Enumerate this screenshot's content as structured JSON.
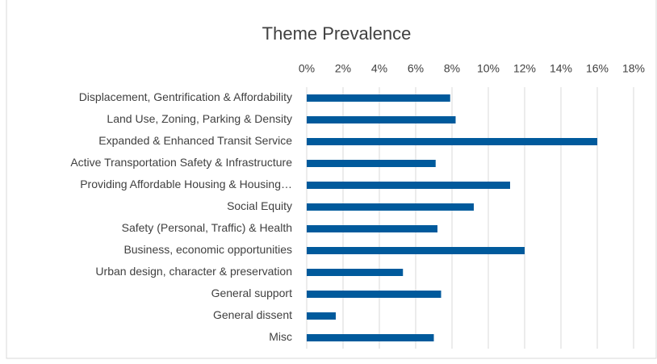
{
  "chart_data": {
    "type": "bar",
    "orientation": "horizontal",
    "title": "Theme Prevalence",
    "categories": [
      "Displacement, Gentrification & Affordability",
      "Land Use, Zoning, Parking & Density",
      "Expanded & Enhanced Transit Service",
      "Active Transportation Safety & Infrastructure",
      "Providing Affordable Housing & Housing…",
      "Social Equity",
      "Safety (Personal, Traffic) & Health",
      "Business, economic opportunities",
      "Urban design, character & preservation",
      "General support",
      "General dissent",
      "Misc"
    ],
    "values": [
      7.9,
      8.2,
      16.0,
      7.1,
      11.2,
      9.2,
      7.2,
      12.0,
      5.3,
      7.4,
      1.6,
      7.0
    ],
    "color": "#005a9c",
    "xlim": [
      0,
      18
    ],
    "xticks": [
      {
        "value": 0,
        "label": "0%"
      },
      {
        "value": 2,
        "label": "2%"
      },
      {
        "value": 4,
        "label": "4%"
      },
      {
        "value": 6,
        "label": "6%"
      },
      {
        "value": 8,
        "label": "8%"
      },
      {
        "value": 10,
        "label": "10%"
      },
      {
        "value": 12,
        "label": "12%"
      },
      {
        "value": 14,
        "label": "14%"
      },
      {
        "value": 16,
        "label": "16%"
      },
      {
        "value": 18,
        "label": "18%"
      }
    ],
    "grid": true
  }
}
